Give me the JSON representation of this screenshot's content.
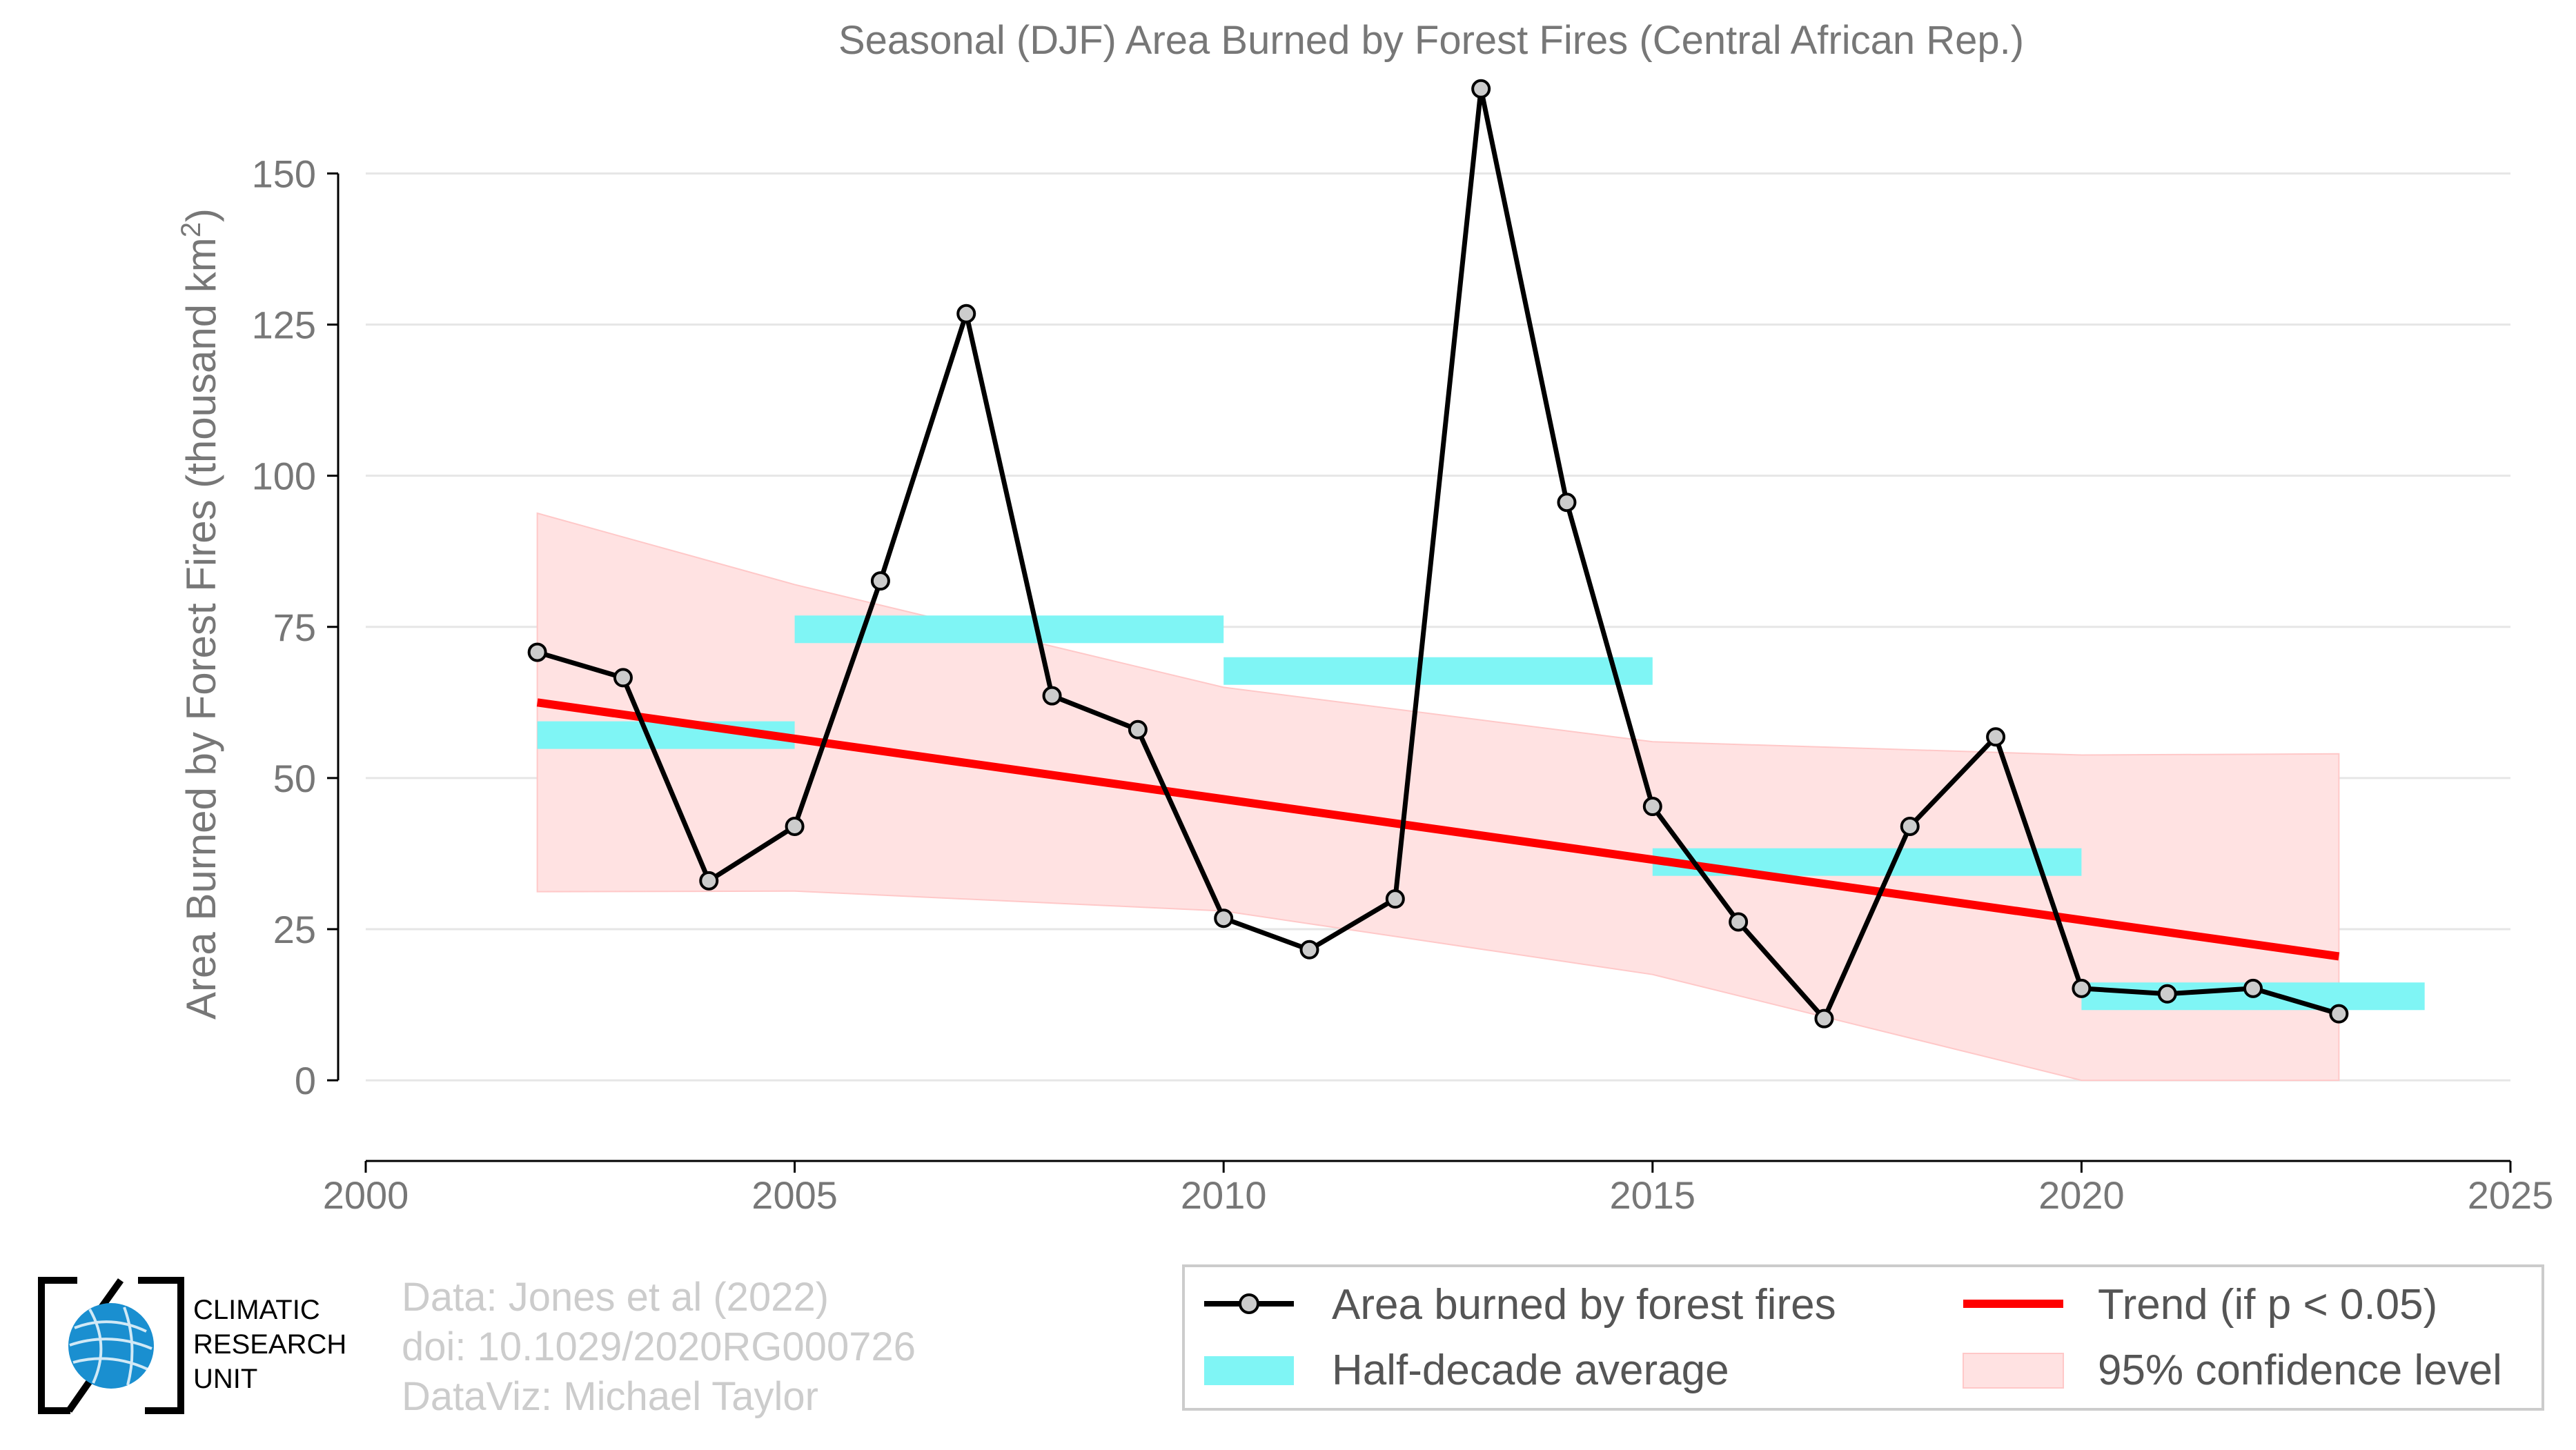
{
  "chart_data": {
    "type": "line",
    "title": "Seasonal (DJF) Area Burned by Forest Fires (Central African Rep.)",
    "ylabel": "Area Burned by Forest Fires (thousand km",
    "ylabel_sup": "2",
    "ylabel_end": ")",
    "xlabel": "",
    "xlim": [
      2000,
      2025
    ],
    "ylim": [
      -13,
      165
    ],
    "x_ticks": [
      2000,
      2005,
      2010,
      2015,
      2020,
      2025
    ],
    "y_ticks": [
      0,
      25,
      50,
      75,
      100,
      125,
      150
    ],
    "grid": "horizontal",
    "series": [
      {
        "name": "Area burned by forest fires",
        "color": "#000000",
        "marker_fill": "#cccccc",
        "x": [
          2002,
          2003,
          2004,
          2005,
          2006,
          2007,
          2008,
          2009,
          2010,
          2011,
          2012,
          2013,
          2014,
          2015,
          2016,
          2017,
          2018,
          2019,
          2020,
          2021,
          2022,
          2023
        ],
        "y": [
          70.8,
          66.6,
          33.0,
          42.0,
          82.6,
          126.8,
          63.6,
          58.0,
          26.8,
          21.6,
          30.0,
          164.0,
          95.6,
          45.3,
          26.2,
          10.2,
          42.0,
          56.8,
          15.2,
          14.3,
          15.2,
          11.0
        ]
      }
    ],
    "half_decade_average": {
      "name": "Half-decade average",
      "color": "#7ff5f5",
      "segments": [
        {
          "x0": 2002,
          "x1": 2005,
          "y": 57.1
        },
        {
          "x0": 2005,
          "x1": 2010,
          "y": 74.6
        },
        {
          "x0": 2010,
          "x1": 2015,
          "y": 67.7
        },
        {
          "x0": 2015,
          "x1": 2020,
          "y": 36.1
        },
        {
          "x0": 2020,
          "x1": 2024,
          "y": 13.9
        }
      ]
    },
    "trend": {
      "name": "Trend (if p < 0.05)",
      "color": "#ff0000",
      "x": [
        2002,
        2023
      ],
      "y": [
        62.5,
        20.5
      ]
    },
    "confidence_band": {
      "name": "95% confidence level",
      "color": "#ffe2e2",
      "x": [
        2002,
        2005,
        2010,
        2015,
        2020,
        2023
      ],
      "upper": [
        93.8,
        82.0,
        65.0,
        56.0,
        53.8,
        54.0
      ],
      "lower": [
        31.2,
        31.3,
        28.0,
        17.5,
        0,
        0
      ]
    },
    "legend_position": "bottom-right"
  },
  "credits": {
    "line1": "Data: Jones et al (2022)",
    "line2": "doi: 10.1029/2020RG000726",
    "line3": "DataViz: Michael Taylor"
  },
  "logo": {
    "line1": "CLIMATIC",
    "line2": "RESEARCH",
    "line3": "UNIT",
    "globe_color": "#1a8fd0"
  }
}
